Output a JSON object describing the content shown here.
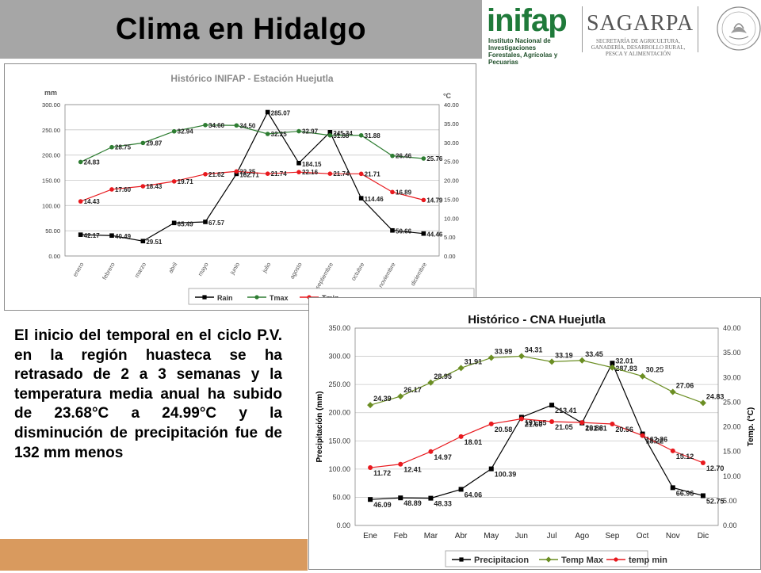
{
  "header": {
    "title": "Clima en Hidalgo",
    "inifap": {
      "logo": "inifap",
      "subtitle_lines": [
        "Instituto Nacional de Investigaciones",
        "Forestales, Agrícolas y Pecuarias"
      ]
    },
    "sagarpa": {
      "logo": "SAGARPA",
      "subtitle_lines": [
        "SECRETARÍA DE AGRICULTURA,",
        "GANADERÍA, DESARROLLO RURAL,",
        "PESCA Y ALIMENTACIÓN"
      ]
    },
    "seal_icon": "mexico-seal-icon"
  },
  "paragraph": "El inicio del temporal en el ciclo P.V. en la región huasteca  se ha retrasado de 2 a 3 semanas y la temperatura media anual ha subido de 23.68°C a 24.99°C y la disminución de precipitación fue de 132 mm menos",
  "colors": {
    "rain": "#000000",
    "tmax": "#2e7d32",
    "tmax_cna": "#6b8e23",
    "tmin": "#e8191e",
    "bottom_strip": "#d99a5e"
  },
  "chart_data": [
    {
      "type": "line",
      "title": "Histórico INIFAP - Estación Huejutla",
      "ylabel_left": "mm",
      "ylabel_right": "°C",
      "categories": [
        "enero",
        "febrero",
        "marzo",
        "abril",
        "mayo",
        "junio",
        "julio",
        "agosto",
        "septiembre",
        "octubre",
        "noviembre",
        "diciembre"
      ],
      "ylim_left": [
        0,
        300
      ],
      "yticks_left": [
        "0.00",
        "50.00",
        "100.00",
        "150.00",
        "200.00",
        "250.00",
        "300.00"
      ],
      "ylim_right": [
        0,
        40
      ],
      "yticks_right": [
        "0.00",
        "5.00",
        "10.00",
        "15.00",
        "20.00",
        "25.00",
        "30.00",
        "35.00",
        "40.00"
      ],
      "grid": true,
      "legend_position": "bottom",
      "series": [
        {
          "name": "Rain",
          "axis": "left",
          "color": "#000000",
          "marker": "square",
          "values": [
            42.17,
            40.49,
            29.51,
            65.49,
            67.57,
            162.71,
            285.07,
            184.15,
            245.34,
            114.46,
            50.66,
            44.46
          ],
          "labels": [
            "42.17",
            "40.49",
            "29.51",
            "65.49",
            "67.57",
            "162.71",
            "285.07",
            "184.15",
            "245.34",
            "114.46",
            "50.66",
            "44.46"
          ]
        },
        {
          "name": "Tmax",
          "axis": "right",
          "color": "#2e7d32",
          "marker": "circle",
          "values": [
            24.83,
            28.75,
            29.87,
            32.94,
            34.6,
            34.5,
            32.25,
            32.97,
            31.88,
            31.88,
            26.46,
            25.76
          ],
          "labels": [
            "24.83",
            "28.75",
            "29.87",
            "32.94",
            "34.60",
            "34.50",
            "32.25",
            "32.97",
            "31.88",
            "31.88",
            "26.46",
            "25.76"
          ]
        },
        {
          "name": "Tmin",
          "axis": "right",
          "color": "#e8191e",
          "marker": "circle",
          "values": [
            14.43,
            17.6,
            18.43,
            19.71,
            21.62,
            22.35,
            21.74,
            22.16,
            21.74,
            21.71,
            16.89,
            14.79
          ],
          "labels": [
            "14.43",
            "17.60",
            "18.43",
            "19.71",
            "21.62",
            "22.35",
            "21.74",
            "22.16",
            "21.74",
            "21.71",
            "16.89",
            "14.79"
          ]
        }
      ]
    },
    {
      "type": "line",
      "title": "Histórico - CNA   Huejutla",
      "ylabel_left": "Precipitación (mm)",
      "ylabel_right": "Temp. (°C)",
      "categories": [
        "Ene",
        "Feb",
        "Mar",
        "Abr",
        "May",
        "Jun",
        "Jul",
        "Ago",
        "Sep",
        "Oct",
        "Nov",
        "Dic"
      ],
      "ylim_left": [
        0,
        350
      ],
      "yticks_left": [
        "0.00",
        "50.00",
        "100.00",
        "150.00",
        "200.00",
        "250.00",
        "300.00",
        "350.00"
      ],
      "ylim_right": [
        0,
        40
      ],
      "yticks_right": [
        "0.00",
        "5.00",
        "10.00",
        "15.00",
        "20.00",
        "25.00",
        "30.00",
        "35.00",
        "40.00"
      ],
      "grid": true,
      "legend_position": "bottom",
      "series": [
        {
          "name": "Precipitacion",
          "axis": "left",
          "color": "#000000",
          "marker": "square",
          "values": [
            46.09,
            48.89,
            48.33,
            64.06,
            100.39,
            191.95,
            213.41,
            181.81,
            287.83,
            162.26,
            66.96,
            52.75
          ],
          "labels": [
            "46.09",
            "48.89",
            "48.33",
            "64.06",
            "100.39",
            "191.95",
            "213.41",
            "181.81",
            "287.83",
            "162.26",
            "66.96",
            "52.75"
          ]
        },
        {
          "name": "Temp Max",
          "axis": "right",
          "color": "#6b8e23",
          "marker": "diamond",
          "values": [
            24.39,
            26.17,
            28.95,
            31.91,
            33.99,
            34.31,
            33.19,
            33.45,
            32.01,
            30.25,
            27.06,
            24.83
          ],
          "labels": [
            "24.39",
            "26.17",
            "28.95",
            "31.91",
            "33.99",
            "34.31",
            "33.19",
            "33.45",
            "32.01",
            "30.25",
            "27.06",
            "24.83"
          ]
        },
        {
          "name": "temp min",
          "axis": "right",
          "color": "#e8191e",
          "marker": "circle",
          "values": [
            11.72,
            12.41,
            14.97,
            18.01,
            20.58,
            21.6,
            21.05,
            20.86,
            20.56,
            18.22,
            15.12,
            12.7
          ],
          "labels": [
            "11.72",
            "12.41",
            "14.97",
            "18.01",
            "20.58",
            "21.60",
            "21.05",
            "20.86",
            "20.56",
            "18.22",
            "15.12",
            "12.70"
          ]
        }
      ]
    }
  ]
}
